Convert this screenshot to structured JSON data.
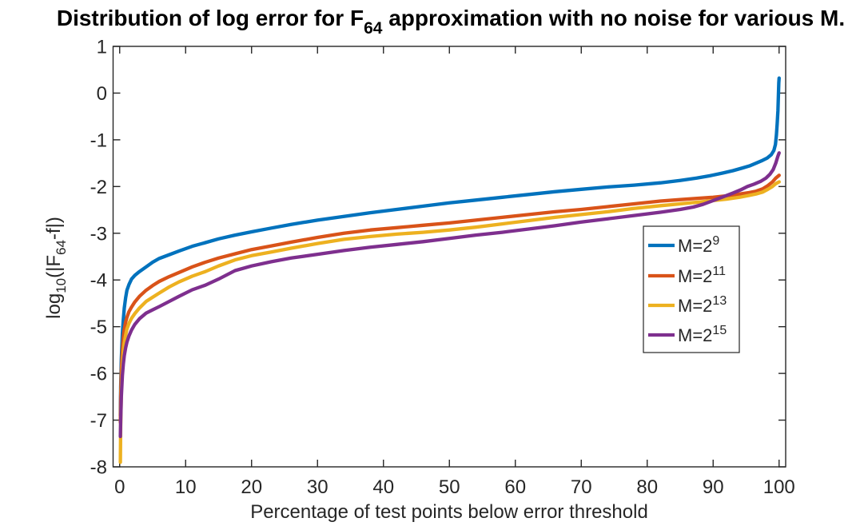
{
  "figure": {
    "title_pre": "Distribution of log error for F",
    "title_sub": "64",
    "title_post": " approximation with no noise for various M."
  },
  "style": {
    "background": "#ffffff",
    "axis_color": "#262626",
    "title_color": "#000000"
  },
  "chart_data": {
    "type": "line",
    "title": "Distribution of log error for F_64 approximation with no noise for various M.",
    "xlabel": "Percentage of test points below error threshold",
    "ylabel": "log_10(|F_64-f|)",
    "ylabel_parts": {
      "p1": "log",
      "sub1": "10",
      "p2": "(|F",
      "sub2": "64",
      "p3": "-f|)"
    },
    "xlim": [
      -1,
      101
    ],
    "ylim": [
      -8,
      1
    ],
    "xticks": [
      0,
      10,
      20,
      30,
      40,
      50,
      60,
      70,
      80,
      90,
      100
    ],
    "yticks": [
      1,
      0,
      -1,
      -2,
      -3,
      -4,
      -5,
      -6,
      -7,
      -8
    ],
    "grid": false,
    "legend": {
      "position": "inside-right",
      "entries": [
        {
          "base": "M=2",
          "exp": "9"
        },
        {
          "base": "M=2",
          "exp": "11"
        },
        {
          "base": "M=2",
          "exp": "13"
        },
        {
          "base": "M=2",
          "exp": "15"
        }
      ]
    },
    "series": [
      {
        "name": "M=2^9",
        "color": "#0072BD",
        "points": [
          [
            0.1,
            -6.9
          ],
          [
            0.15,
            -6.3
          ],
          [
            0.25,
            -5.7
          ],
          [
            0.4,
            -5.15
          ],
          [
            0.55,
            -4.85
          ],
          [
            0.7,
            -4.6
          ],
          [
            0.9,
            -4.38
          ],
          [
            1.1,
            -4.22
          ],
          [
            1.4,
            -4.1
          ],
          [
            1.8,
            -3.98
          ],
          [
            2.3,
            -3.9
          ],
          [
            3,
            -3.82
          ],
          [
            4,
            -3.72
          ],
          [
            5,
            -3.62
          ],
          [
            6,
            -3.54
          ],
          [
            7.5,
            -3.46
          ],
          [
            9,
            -3.38
          ],
          [
            11,
            -3.28
          ],
          [
            13,
            -3.2
          ],
          [
            15,
            -3.12
          ],
          [
            17.5,
            -3.04
          ],
          [
            20,
            -2.97
          ],
          [
            23,
            -2.89
          ],
          [
            26,
            -2.81
          ],
          [
            30,
            -2.72
          ],
          [
            34,
            -2.64
          ],
          [
            38,
            -2.56
          ],
          [
            42,
            -2.49
          ],
          [
            46,
            -2.42
          ],
          [
            50,
            -2.35
          ],
          [
            54,
            -2.29
          ],
          [
            58,
            -2.23
          ],
          [
            62,
            -2.17
          ],
          [
            66,
            -2.11
          ],
          [
            70,
            -2.06
          ],
          [
            74,
            -2.01
          ],
          [
            78,
            -1.97
          ],
          [
            82,
            -1.92
          ],
          [
            85,
            -1.87
          ],
          [
            87.5,
            -1.82
          ],
          [
            89.5,
            -1.77
          ],
          [
            91.5,
            -1.71
          ],
          [
            93,
            -1.66
          ],
          [
            94.5,
            -1.6
          ],
          [
            95.5,
            -1.56
          ],
          [
            96.5,
            -1.5
          ],
          [
            97.5,
            -1.44
          ],
          [
            98.2,
            -1.39
          ],
          [
            98.8,
            -1.32
          ],
          [
            99.2,
            -1.23
          ],
          [
            99.45,
            -1.1
          ],
          [
            99.6,
            -0.9
          ],
          [
            99.72,
            -0.65
          ],
          [
            99.82,
            -0.38
          ],
          [
            99.9,
            -0.05
          ],
          [
            99.96,
            0.22
          ],
          [
            100,
            0.32
          ]
        ]
      },
      {
        "name": "M=2^11",
        "color": "#D95319",
        "points": [
          [
            0.1,
            -7.05
          ],
          [
            0.15,
            -6.5
          ],
          [
            0.25,
            -5.95
          ],
          [
            0.4,
            -5.5
          ],
          [
            0.55,
            -5.22
          ],
          [
            0.7,
            -5.05
          ],
          [
            0.9,
            -4.9
          ],
          [
            1.1,
            -4.8
          ],
          [
            1.4,
            -4.68
          ],
          [
            1.8,
            -4.58
          ],
          [
            2.3,
            -4.47
          ],
          [
            3,
            -4.35
          ],
          [
            4,
            -4.22
          ],
          [
            5,
            -4.12
          ],
          [
            6,
            -4.03
          ],
          [
            7.5,
            -3.93
          ],
          [
            9,
            -3.84
          ],
          [
            11,
            -3.72
          ],
          [
            13,
            -3.62
          ],
          [
            15,
            -3.53
          ],
          [
            17.5,
            -3.44
          ],
          [
            20,
            -3.35
          ],
          [
            23,
            -3.27
          ],
          [
            26,
            -3.19
          ],
          [
            30,
            -3.09
          ],
          [
            34,
            -3.0
          ],
          [
            38,
            -2.93
          ],
          [
            42,
            -2.88
          ],
          [
            46,
            -2.83
          ],
          [
            50,
            -2.78
          ],
          [
            54,
            -2.72
          ],
          [
            58,
            -2.66
          ],
          [
            62,
            -2.6
          ],
          [
            66,
            -2.54
          ],
          [
            70,
            -2.49
          ],
          [
            74,
            -2.43
          ],
          [
            78,
            -2.37
          ],
          [
            82,
            -2.31
          ],
          [
            85,
            -2.28
          ],
          [
            88,
            -2.25
          ],
          [
            90,
            -2.23
          ],
          [
            92,
            -2.2
          ],
          [
            94,
            -2.16
          ],
          [
            95.5,
            -2.13
          ],
          [
            96.5,
            -2.1
          ],
          [
            97.5,
            -2.05
          ],
          [
            98.3,
            -1.98
          ],
          [
            99,
            -1.9
          ],
          [
            99.5,
            -1.82
          ],
          [
            100,
            -1.76
          ]
        ]
      },
      {
        "name": "M=2^13",
        "color": "#EDB120",
        "points": [
          [
            0.1,
            -7.9
          ],
          [
            0.15,
            -7.1
          ],
          [
            0.25,
            -6.4
          ],
          [
            0.4,
            -5.85
          ],
          [
            0.55,
            -5.55
          ],
          [
            0.7,
            -5.35
          ],
          [
            0.9,
            -5.18
          ],
          [
            1.1,
            -5.05
          ],
          [
            1.4,
            -4.93
          ],
          [
            1.8,
            -4.82
          ],
          [
            2.3,
            -4.72
          ],
          [
            3,
            -4.6
          ],
          [
            4,
            -4.46
          ],
          [
            5,
            -4.37
          ],
          [
            6,
            -4.28
          ],
          [
            7.5,
            -4.15
          ],
          [
            9,
            -4.04
          ],
          [
            11,
            -3.92
          ],
          [
            13,
            -3.82
          ],
          [
            15,
            -3.7
          ],
          [
            17.5,
            -3.57
          ],
          [
            20,
            -3.48
          ],
          [
            23,
            -3.4
          ],
          [
            26,
            -3.32
          ],
          [
            30,
            -3.22
          ],
          [
            34,
            -3.13
          ],
          [
            38,
            -3.07
          ],
          [
            42,
            -3.02
          ],
          [
            46,
            -2.98
          ],
          [
            50,
            -2.93
          ],
          [
            54,
            -2.87
          ],
          [
            58,
            -2.8
          ],
          [
            62,
            -2.73
          ],
          [
            66,
            -2.66
          ],
          [
            70,
            -2.6
          ],
          [
            74,
            -2.54
          ],
          [
            78,
            -2.47
          ],
          [
            82,
            -2.41
          ],
          [
            85,
            -2.37
          ],
          [
            88,
            -2.33
          ],
          [
            90,
            -2.3
          ],
          [
            92,
            -2.27
          ],
          [
            94,
            -2.23
          ],
          [
            95.5,
            -2.19
          ],
          [
            96.5,
            -2.16
          ],
          [
            97.5,
            -2.12
          ],
          [
            98.3,
            -2.06
          ],
          [
            99,
            -2.0
          ],
          [
            99.5,
            -1.94
          ],
          [
            100,
            -1.9
          ]
        ]
      },
      {
        "name": "M=2^15",
        "color": "#7E2F8E",
        "points": [
          [
            0.1,
            -7.35
          ],
          [
            0.15,
            -7.0
          ],
          [
            0.25,
            -6.5
          ],
          [
            0.4,
            -6.05
          ],
          [
            0.55,
            -5.8
          ],
          [
            0.7,
            -5.62
          ],
          [
            0.9,
            -5.45
          ],
          [
            1.1,
            -5.33
          ],
          [
            1.4,
            -5.2
          ],
          [
            1.8,
            -5.07
          ],
          [
            2.3,
            -4.95
          ],
          [
            3,
            -4.83
          ],
          [
            4,
            -4.71
          ],
          [
            5,
            -4.64
          ],
          [
            6,
            -4.57
          ],
          [
            7.5,
            -4.46
          ],
          [
            9,
            -4.35
          ],
          [
            11,
            -4.21
          ],
          [
            13,
            -4.11
          ],
          [
            15,
            -3.98
          ],
          [
            17.5,
            -3.8
          ],
          [
            20,
            -3.7
          ],
          [
            23,
            -3.61
          ],
          [
            26,
            -3.53
          ],
          [
            30,
            -3.45
          ],
          [
            34,
            -3.37
          ],
          [
            38,
            -3.3
          ],
          [
            42,
            -3.24
          ],
          [
            46,
            -3.18
          ],
          [
            50,
            -3.11
          ],
          [
            54,
            -3.04
          ],
          [
            58,
            -2.98
          ],
          [
            62,
            -2.91
          ],
          [
            66,
            -2.84
          ],
          [
            70,
            -2.76
          ],
          [
            74,
            -2.69
          ],
          [
            78,
            -2.62
          ],
          [
            82,
            -2.55
          ],
          [
            85,
            -2.49
          ],
          [
            87,
            -2.44
          ],
          [
            88.5,
            -2.38
          ],
          [
            90,
            -2.3
          ],
          [
            91.5,
            -2.22
          ],
          [
            93,
            -2.14
          ],
          [
            94.2,
            -2.07
          ],
          [
            95.2,
            -2.0
          ],
          [
            96.2,
            -1.95
          ],
          [
            97.2,
            -1.89
          ],
          [
            98,
            -1.82
          ],
          [
            98.6,
            -1.74
          ],
          [
            99.1,
            -1.64
          ],
          [
            99.5,
            -1.5
          ],
          [
            99.8,
            -1.36
          ],
          [
            100,
            -1.28
          ]
        ]
      }
    ]
  }
}
